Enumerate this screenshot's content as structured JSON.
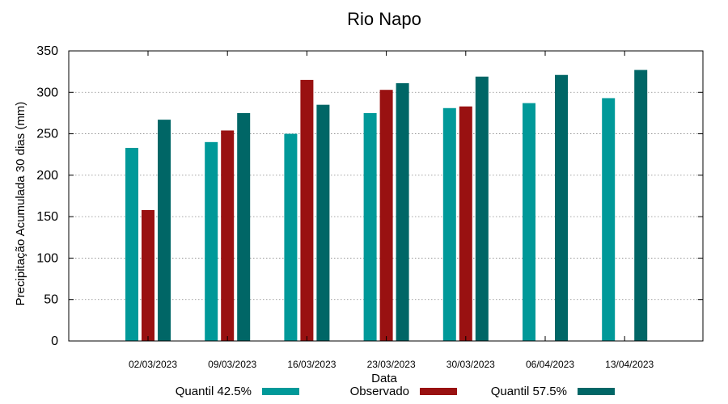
{
  "chart_data": {
    "type": "bar",
    "title": "Rio Napo",
    "xlabel": "Data",
    "ylabel": "Precipitação Acumulada 30 dias (mm)",
    "ylim": [
      0,
      350
    ],
    "yticks": [
      0,
      50,
      100,
      150,
      200,
      250,
      300,
      350
    ],
    "grid": true,
    "legend_position": "bottom",
    "categories": [
      "02/03/2023",
      "09/03/2023",
      "16/03/2023",
      "23/03/2023",
      "30/03/2023",
      "06/04/2023",
      "13/04/2023"
    ],
    "series": [
      {
        "name": "Quantil 42.5%",
        "color": "#009999",
        "values": [
          233,
          240,
          250,
          275,
          281,
          287,
          293
        ]
      },
      {
        "name": "Observado",
        "color": "#991111",
        "values": [
          158,
          254,
          315,
          303,
          283,
          null,
          null
        ]
      },
      {
        "name": "Quantil 57.5%",
        "color": "#006666",
        "values": [
          267,
          275,
          285,
          311,
          319,
          321,
          327
        ]
      }
    ]
  }
}
